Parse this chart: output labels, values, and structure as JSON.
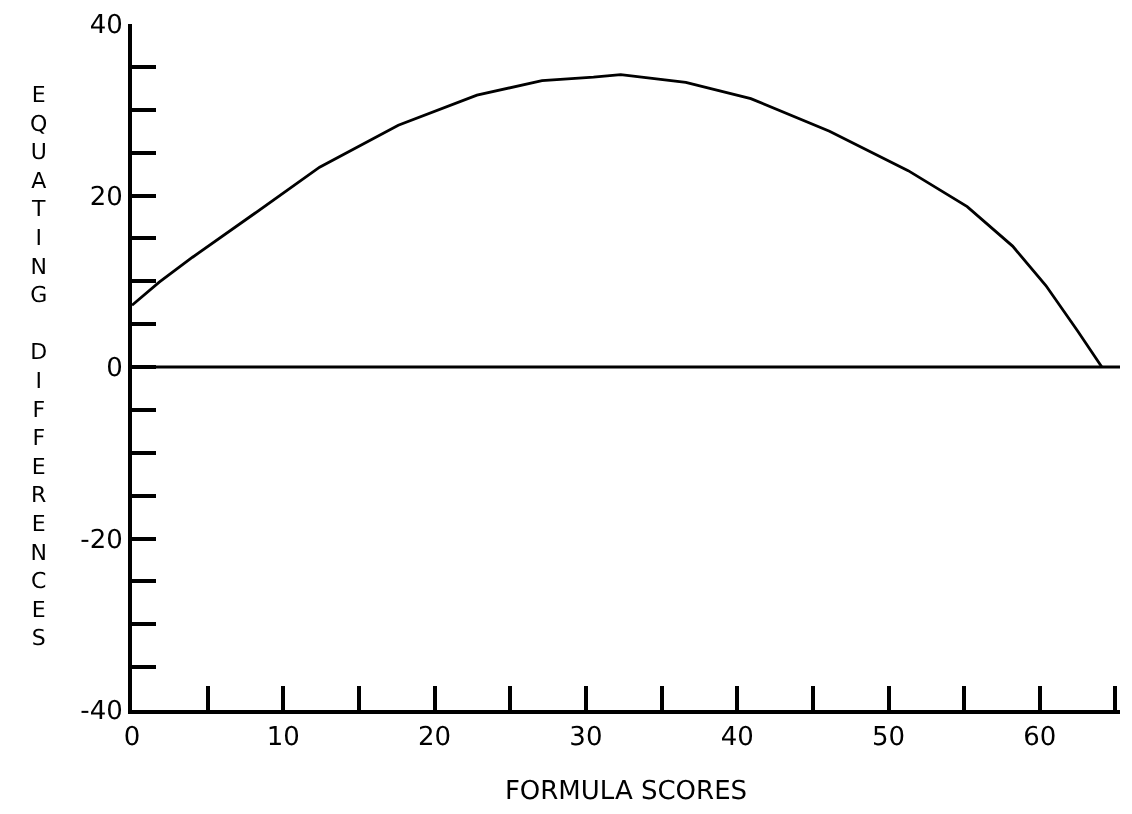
{
  "chart_data": {
    "type": "line",
    "xlabel": "FORMULA SCORES",
    "ylabel": "EQUATING DIFFERENCES",
    "x": [
      0,
      1.8,
      4,
      8.1,
      12.4,
      17.6,
      22.8,
      27.1,
      30.5,
      32.3,
      36.6,
      40.9,
      46.1,
      51.3,
      55.2,
      58.2,
      60.4,
      62.5,
      64.1
    ],
    "series": [
      {
        "color": "#000000",
        "values": [
          7.2,
          9.9,
          12.8,
          17.9,
          23.3,
          28.2,
          31.7,
          33.4,
          33.8,
          34.1,
          33.2,
          31.3,
          27.5,
          22.9,
          18.7,
          14.1,
          9.5,
          4.2,
          0
        ]
      }
    ],
    "xlim": [
      0,
      65.3
    ],
    "ylim": [
      -40,
      40
    ],
    "xticks": [
      0,
      {
        "value": 5,
        "label": null
      },
      10,
      {
        "value": 15,
        "label": null
      },
      20,
      {
        "value": 25,
        "label": null
      },
      30,
      {
        "value": 35,
        "label": null
      },
      40,
      {
        "value": 45,
        "label": null
      },
      50,
      {
        "value": 55,
        "label": null
      },
      60,
      {
        "value": 65,
        "label": null
      }
    ],
    "yticks": [
      -40,
      {
        "value": -35,
        "label": null
      },
      {
        "value": -30,
        "label": null
      },
      {
        "value": -25,
        "label": null
      },
      -20,
      {
        "value": -15,
        "label": null
      },
      {
        "value": -10,
        "label": null
      },
      {
        "value": -5,
        "label": null
      },
      0,
      {
        "value": 5,
        "label": null
      },
      {
        "value": 10,
        "label": null
      },
      {
        "value": 15,
        "label": null
      },
      20,
      {
        "value": 25,
        "label": null
      },
      {
        "value": 30,
        "label": null
      },
      {
        "value": 35,
        "label": null
      },
      40
    ],
    "ref_lines": [
      {
        "axis": "y",
        "value": 0,
        "color": "#000000"
      }
    ],
    "marker": "none",
    "line_style": "solid"
  }
}
